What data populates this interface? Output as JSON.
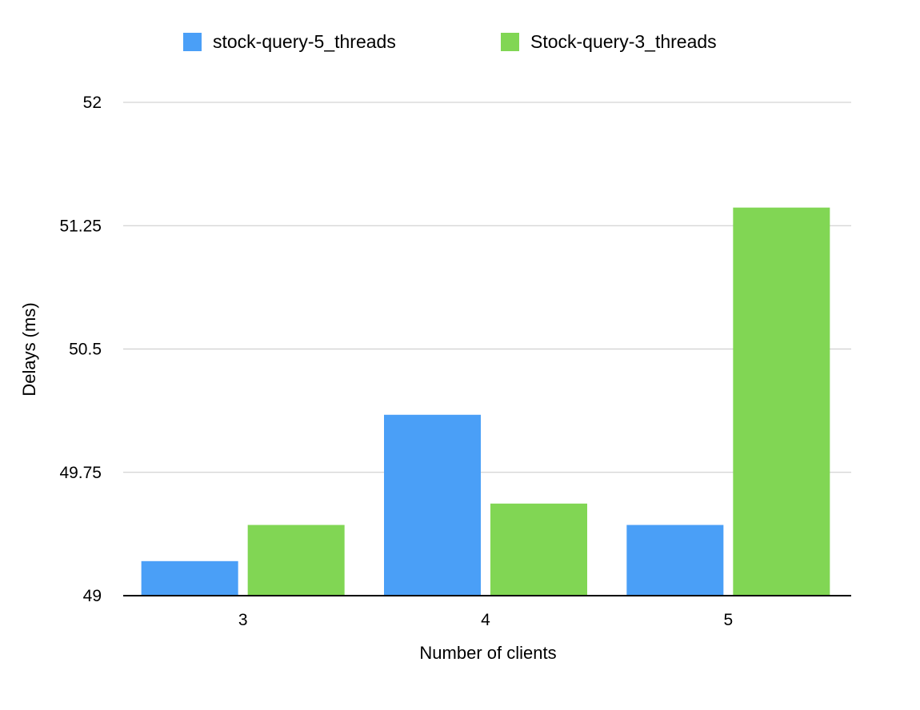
{
  "chart_data": {
    "type": "bar",
    "categories": [
      "3",
      "4",
      "5"
    ],
    "series": [
      {
        "name": "stock-query-5_threads",
        "color": "#4a9ff7",
        "values": [
          49.21,
          50.1,
          49.43
        ]
      },
      {
        "name": "Stock-query-3_threads",
        "color": "#81d654",
        "values": [
          49.43,
          49.56,
          51.36
        ]
      }
    ],
    "xlabel": "Number of clients",
    "ylabel": "Delays (ms)",
    "ylim": [
      49,
      52
    ],
    "yticks": [
      "49",
      "49.75",
      "50.5",
      "51.25",
      "52"
    ],
    "grid": true,
    "legend_position": "top"
  }
}
